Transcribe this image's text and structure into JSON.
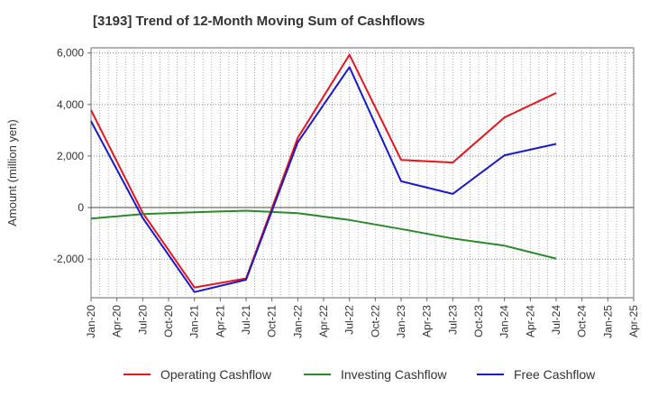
{
  "title": "[3193]  Trend of 12-Month Moving Sum of Cashflows",
  "chart_data": {
    "type": "line",
    "title": "[3193]  Trend of 12-Month Moving Sum of Cashflows",
    "xlabel": "",
    "ylabel": "Amount (million yen)",
    "ylim": [
      -3500,
      6200
    ],
    "y_ticks": [
      "6,000",
      "4,000",
      "2,000",
      "0",
      "-2,000"
    ],
    "y_tick_values": [
      6000,
      4000,
      2000,
      0,
      -2000
    ],
    "x": [
      "Jan-20",
      "Apr-20",
      "Jul-20",
      "Oct-20",
      "Jan-21",
      "Apr-21",
      "Jul-21",
      "Oct-21",
      "Jan-22",
      "Apr-22",
      "Jul-22",
      "Oct-22",
      "Jan-23",
      "Apr-23",
      "Jul-23",
      "Oct-23",
      "Jan-24",
      "Apr-24",
      "Jul-24",
      "Oct-24",
      "Jan-25",
      "Apr-25"
    ],
    "grid": true,
    "legend_position": "bottom",
    "series": [
      {
        "name": "Operating Cashflow",
        "color": "#e8141b",
        "points": [
          [
            "Jan-20",
            3780
          ],
          [
            "Jul-20",
            -200
          ],
          [
            "Jan-21",
            -3100
          ],
          [
            "Jul-21",
            -2750
          ],
          [
            "Jan-22",
            2700
          ],
          [
            "Jul-22",
            5930
          ],
          [
            "Jan-23",
            1850
          ],
          [
            "Jul-23",
            1750
          ],
          [
            "Jan-24",
            3500
          ],
          [
            "Jul-24",
            4450
          ]
        ]
      },
      {
        "name": "Investing Cashflow",
        "color": "#2a8a2a",
        "points": [
          [
            "Jan-20",
            -430
          ],
          [
            "Jul-20",
            -250
          ],
          [
            "Jan-21",
            -180
          ],
          [
            "Jul-21",
            -120
          ],
          [
            "Jan-22",
            -220
          ],
          [
            "Jul-22",
            -480
          ],
          [
            "Jan-23",
            -830
          ],
          [
            "Jul-23",
            -1200
          ],
          [
            "Jan-24",
            -1480
          ],
          [
            "Jul-24",
            -1980
          ]
        ]
      },
      {
        "name": "Free Cashflow",
        "color": "#1a1acc",
        "points": [
          [
            "Jan-20",
            3350
          ],
          [
            "Jul-20",
            -400
          ],
          [
            "Jan-21",
            -3280
          ],
          [
            "Jul-21",
            -2800
          ],
          [
            "Jan-22",
            2530
          ],
          [
            "Jul-22",
            5450
          ],
          [
            "Jan-23",
            1020
          ],
          [
            "Jul-23",
            530
          ],
          [
            "Jan-24",
            2030
          ],
          [
            "Jul-24",
            2470
          ]
        ]
      }
    ]
  }
}
